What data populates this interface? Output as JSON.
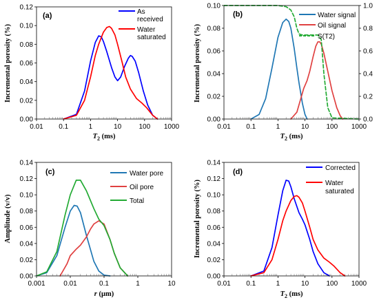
{
  "chart_data": [
    {
      "panel": "(a)",
      "type": "line",
      "x_scale": "log",
      "xlim": [
        0.01,
        1000
      ],
      "ylim": [
        0,
        0.12
      ],
      "xticks": [
        "0.01",
        "0.1",
        "1",
        "10",
        "100",
        "1000"
      ],
      "yticks": [
        "0.00",
        "0.02",
        "0.04",
        "0.06",
        "0.08",
        "0.10",
        "0.12"
      ],
      "xlabel": "T2 (ms)",
      "ylabel": "Incremental porosity (%)",
      "legend_position": "top-right",
      "series": [
        {
          "name": "As received",
          "color": "#0000ff",
          "x": [
            0.1,
            0.3,
            0.6,
            1,
            1.5,
            2,
            2.5,
            3,
            4,
            6,
            8,
            10,
            13,
            18,
            25,
            30,
            35,
            45,
            60,
            90,
            130,
            200,
            300
          ],
          "y": [
            0,
            0.005,
            0.03,
            0.062,
            0.082,
            0.089,
            0.088,
            0.083,
            0.072,
            0.055,
            0.045,
            0.041,
            0.045,
            0.056,
            0.065,
            0.068,
            0.067,
            0.062,
            0.05,
            0.03,
            0.015,
            0.004,
            0
          ]
        },
        {
          "name": "Water saturated",
          "color": "#ff0000",
          "x": [
            0.1,
            0.3,
            0.6,
            1,
            1.5,
            2,
            3,
            4,
            5,
            6,
            8,
            10,
            15,
            20,
            30,
            50,
            80,
            120,
            200,
            300
          ],
          "y": [
            0,
            0.004,
            0.02,
            0.045,
            0.068,
            0.08,
            0.093,
            0.098,
            0.099,
            0.097,
            0.09,
            0.08,
            0.06,
            0.045,
            0.032,
            0.022,
            0.017,
            0.012,
            0.004,
            0
          ]
        }
      ]
    },
    {
      "panel": "(b)",
      "type": "line",
      "x_scale": "log",
      "xlim": [
        0.01,
        1000
      ],
      "ylim": [
        0,
        0.1
      ],
      "y2lim": [
        0,
        1.0
      ],
      "xticks": [
        "0.01",
        "0.1",
        "1",
        "10",
        "100",
        "1000"
      ],
      "yticks": [
        "0.00",
        "0.02",
        "0.04",
        "0.06",
        "0.08",
        "0.10"
      ],
      "y2ticks": [
        "0.0",
        "0.2",
        "0.4",
        "0.6",
        "0.8",
        "1.0"
      ],
      "xlabel": "T2 (ms)",
      "ylabel": "Incremental porosity (%)",
      "legend_position": "top-right",
      "series": [
        {
          "name": "Water signal",
          "color": "#1f77b4",
          "x": [
            0.1,
            0.2,
            0.35,
            0.6,
            1,
            1.5,
            2,
            2.5,
            3,
            4,
            5,
            6,
            8,
            10,
            12
          ],
          "y": [
            0,
            0.004,
            0.018,
            0.045,
            0.072,
            0.085,
            0.088,
            0.086,
            0.08,
            0.062,
            0.045,
            0.032,
            0.014,
            0.004,
            0
          ]
        },
        {
          "name": "Oil signal",
          "color": "#e04040",
          "x": [
            3,
            5,
            7,
            9,
            12,
            15,
            20,
            25,
            30,
            35,
            40,
            50,
            70,
            100,
            150,
            200,
            250
          ],
          "y": [
            0,
            0.006,
            0.018,
            0.027,
            0.034,
            0.042,
            0.055,
            0.064,
            0.068,
            0.068,
            0.066,
            0.058,
            0.042,
            0.025,
            0.01,
            0.003,
            0
          ]
        },
        {
          "name": "S(T2)",
          "color": "#22aa33",
          "dashed": true,
          "axis": "right",
          "x": [
            0.01,
            1,
            2,
            3,
            4,
            5,
            6,
            8,
            10,
            30,
            40,
            50,
            70,
            100,
            1000
          ],
          "y": [
            1.0,
            1.0,
            0.99,
            0.96,
            0.9,
            0.8,
            0.75,
            0.74,
            0.74,
            0.74,
            0.7,
            0.4,
            0.1,
            0.01,
            0
          ]
        }
      ]
    },
    {
      "panel": "(c)",
      "type": "line",
      "x_scale": "log",
      "xlim": [
        0.001,
        10
      ],
      "ylim": [
        0,
        0.14
      ],
      "xticks": [
        "0.001",
        "0.01",
        "0.1",
        "1",
        "10"
      ],
      "yticks": [
        "0.00",
        "0.02",
        "0.04",
        "0.06",
        "0.08",
        "0.10",
        "0.12",
        "0.14"
      ],
      "xlabel": "r (μm)",
      "ylabel": "Amplitude (v/v)",
      "legend_position": "top-right",
      "series": [
        {
          "name": "Water pore",
          "color": "#1f77b4",
          "x": [
            0.001,
            0.002,
            0.004,
            0.007,
            0.01,
            0.013,
            0.016,
            0.02,
            0.03,
            0.05,
            0.07,
            0.1,
            0.15
          ],
          "y": [
            0,
            0.004,
            0.025,
            0.06,
            0.08,
            0.087,
            0.086,
            0.078,
            0.05,
            0.018,
            0.006,
            0.001,
            0
          ]
        },
        {
          "name": "Oil pore",
          "color": "#e04040",
          "x": [
            0.005,
            0.008,
            0.01,
            0.015,
            0.02,
            0.03,
            0.04,
            0.05,
            0.07,
            0.1,
            0.15,
            0.2,
            0.3,
            0.5
          ],
          "y": [
            0,
            0.015,
            0.025,
            0.033,
            0.038,
            0.048,
            0.058,
            0.064,
            0.068,
            0.064,
            0.045,
            0.028,
            0.01,
            0
          ]
        },
        {
          "name": "Total",
          "color": "#22aa33",
          "x": [
            0.001,
            0.002,
            0.004,
            0.007,
            0.01,
            0.015,
            0.02,
            0.03,
            0.05,
            0.07,
            0.1,
            0.15,
            0.2,
            0.3,
            0.5
          ],
          "y": [
            0,
            0.005,
            0.03,
            0.075,
            0.1,
            0.118,
            0.118,
            0.105,
            0.083,
            0.07,
            0.062,
            0.045,
            0.028,
            0.01,
            0
          ]
        }
      ]
    },
    {
      "panel": "(d)",
      "type": "line",
      "x_scale": "log",
      "xlim": [
        0.01,
        1000
      ],
      "ylim": [
        0,
        0.14
      ],
      "xticks": [
        "0.01",
        "0.1",
        "1",
        "10",
        "100",
        "1000"
      ],
      "yticks": [
        "0.00",
        "0.02",
        "0.04",
        "0.06",
        "0.08",
        "0.10",
        "0.12",
        "0.14"
      ],
      "xlabel": "T2 (ms)",
      "ylabel": "Incremental porosity (%)",
      "legend_position": "top-right",
      "series": [
        {
          "name": "Corrected",
          "color": "#0000ff",
          "x": [
            0.1,
            0.3,
            0.6,
            1,
            1.5,
            2,
            2.5,
            3,
            4,
            6,
            8,
            10,
            15,
            20,
            30,
            50,
            80
          ],
          "y": [
            0,
            0.006,
            0.035,
            0.075,
            0.105,
            0.118,
            0.117,
            0.11,
            0.095,
            0.078,
            0.07,
            0.063,
            0.045,
            0.03,
            0.015,
            0.004,
            0
          ]
        },
        {
          "name": "Water saturated",
          "color": "#ff0000",
          "x": [
            0.1,
            0.3,
            0.6,
            1,
            1.5,
            2,
            3,
            4,
            5,
            6,
            8,
            10,
            15,
            20,
            30,
            50,
            80,
            120,
            200,
            300
          ],
          "y": [
            0,
            0.004,
            0.02,
            0.045,
            0.068,
            0.08,
            0.093,
            0.098,
            0.099,
            0.097,
            0.09,
            0.08,
            0.06,
            0.045,
            0.032,
            0.022,
            0.017,
            0.012,
            0.004,
            0
          ]
        }
      ]
    }
  ],
  "labels": {
    "a": {
      "panel": "(a)",
      "ylabel": "Incremental porosity (%)",
      "xlabel_main": "T",
      "xlabel_sub": "2",
      "xlabel_unit": " (ms)",
      "legend1": "As",
      "legend1b": "received",
      "legend2": "Water",
      "legend2b": "saturated"
    },
    "b": {
      "panel": "(b)",
      "ylabel": "Incremental porosity (%)",
      "xlabel_main": "T",
      "xlabel_sub": "2",
      "xlabel_unit": " (ms)",
      "legend1": "Water signal",
      "legend2": "Oil signal",
      "legend3": "S(T2)"
    },
    "c": {
      "panel": "(c)",
      "ylabel": "Amplitude (v/v)",
      "xlabel_main": "r",
      "xlabel_unit": " (μm)",
      "legend1": "Water pore",
      "legend2": "Oil pore",
      "legend3": "Total"
    },
    "d": {
      "panel": "(d)",
      "ylabel": "Incremental porosity (%)",
      "xlabel_main": "T",
      "xlabel_sub": "2",
      "xlabel_unit": " (ms)",
      "legend1": "Corrected",
      "legend2": "Water",
      "legend2b": "saturated"
    }
  }
}
